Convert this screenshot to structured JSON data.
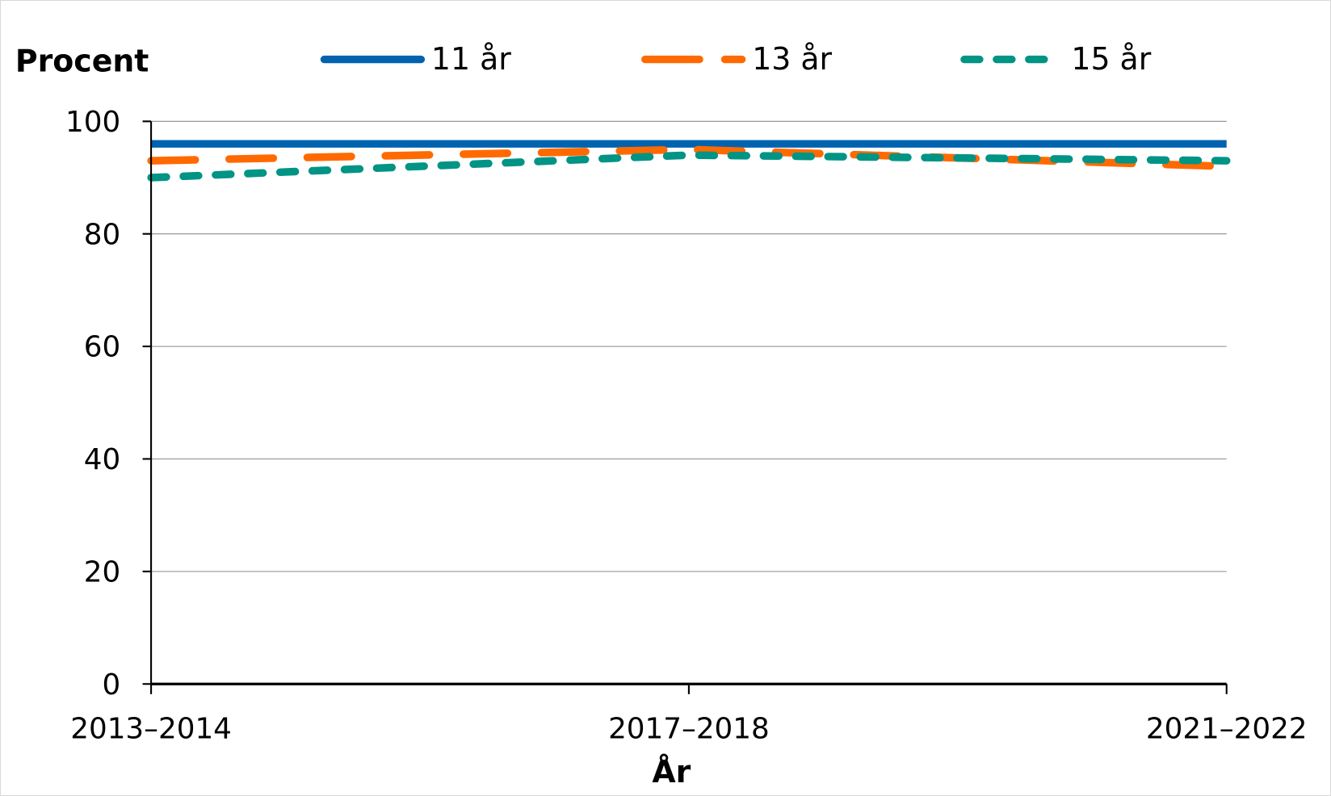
{
  "chart_data": {
    "type": "line",
    "ylabel": "Procent",
    "xlabel": "År",
    "categories": [
      "2013–2014",
      "2017–2018",
      "2021–2022"
    ],
    "ylim": [
      0,
      100
    ],
    "yticks": [
      0,
      20,
      40,
      60,
      80,
      100
    ],
    "grid": true,
    "legend": "top",
    "series": [
      {
        "name": "11 år",
        "values": [
          96,
          96,
          96
        ],
        "color": "#0063AF",
        "dash": "solid"
      },
      {
        "name": "13 år",
        "values": [
          93,
          95,
          92
        ],
        "color": "#FF6A00",
        "dash": "long-dash"
      },
      {
        "name": "15 år",
        "values": [
          90,
          94,
          93
        ],
        "color": "#009485",
        "dash": "short-dash"
      }
    ]
  }
}
